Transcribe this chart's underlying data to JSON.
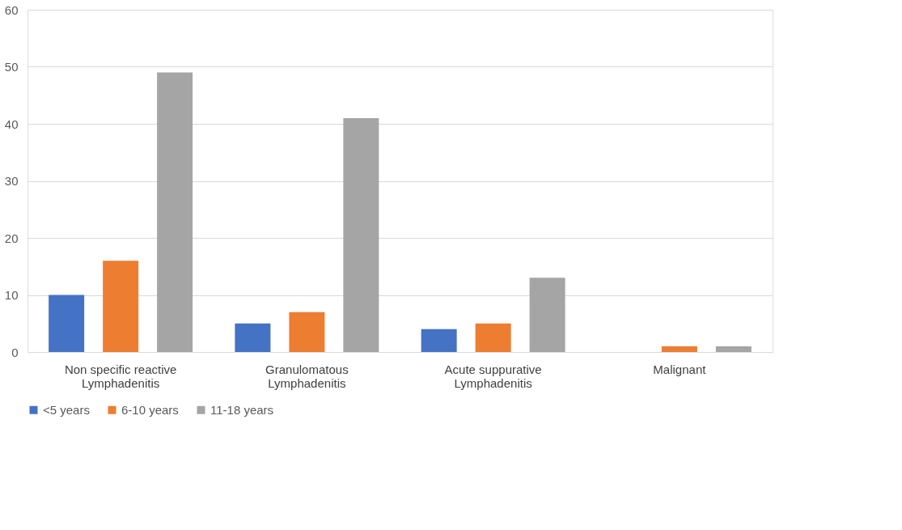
{
  "chart_data": {
    "type": "bar",
    "categories": [
      "Non specific reactive Lymphadenitis",
      "Granulomatous Lymphadenitis",
      "Acute suppurative Lymphadenitis",
      "Malignant"
    ],
    "series": [
      {
        "name": "<5 years",
        "color": "#4472c4",
        "values": [
          10,
          5,
          4,
          0
        ]
      },
      {
        "name": "6-10 years",
        "color": "#ed7d31",
        "values": [
          16,
          7,
          5,
          1
        ]
      },
      {
        "name": "11-18 years",
        "color": "#a5a5a5",
        "values": [
          49,
          41,
          13,
          1
        ]
      }
    ],
    "ylim": [
      0,
      60
    ],
    "yticks": [
      0,
      10,
      20,
      30,
      40,
      50,
      60
    ],
    "grid": "y",
    "legend": "bottom"
  }
}
